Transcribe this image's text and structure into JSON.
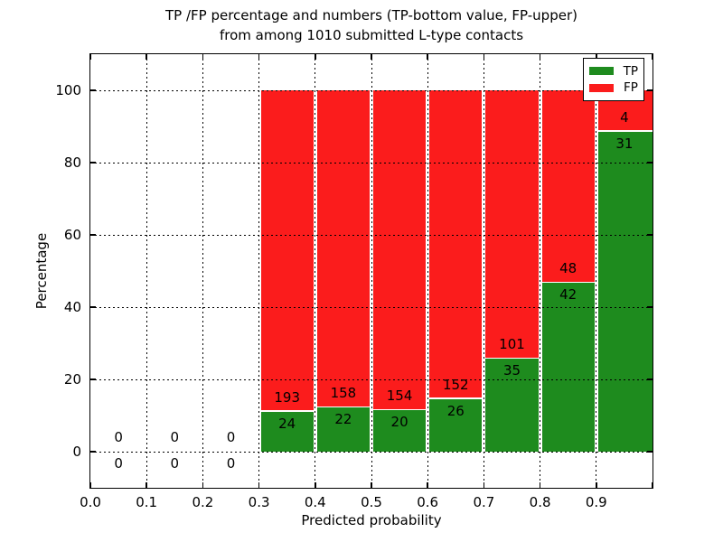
{
  "chart_data": {
    "type": "bar",
    "subtype": "stacked-percentage-histogram",
    "title_lines": [
      "TP /FP percentage and numbers (TP-bottom value, FP-upper)",
      "from among 1010 submitted L-type contacts"
    ],
    "xlabel": "Predicted probability",
    "ylabel": "Percentage",
    "xlim": [
      0.0,
      1.0
    ],
    "ylim": [
      -10,
      110
    ],
    "x_ticks": [
      "0.0",
      "0.1",
      "0.2",
      "0.3",
      "0.4",
      "0.5",
      "0.6",
      "0.7",
      "0.8",
      "0.9"
    ],
    "y_ticks": [
      0,
      20,
      40,
      60,
      80,
      100
    ],
    "grid": "dotted",
    "bin_width": 0.1,
    "categories": [
      0.0,
      0.1,
      0.2,
      0.3,
      0.4,
      0.5,
      0.6,
      0.7,
      0.8,
      0.9
    ],
    "series": [
      {
        "name": "TP",
        "color": "#1e8b1e",
        "values": [
          0,
          0,
          0,
          24,
          22,
          20,
          26,
          35,
          42,
          31
        ]
      },
      {
        "name": "FP",
        "color": "#fb1c1c",
        "values": [
          0,
          0,
          0,
          193,
          158,
          154,
          152,
          101,
          48,
          4
        ]
      }
    ],
    "bar_total_height_percent": 100,
    "legend_position": "upper right",
    "frame_color": "#000000",
    "background_color": "#ffffff"
  }
}
